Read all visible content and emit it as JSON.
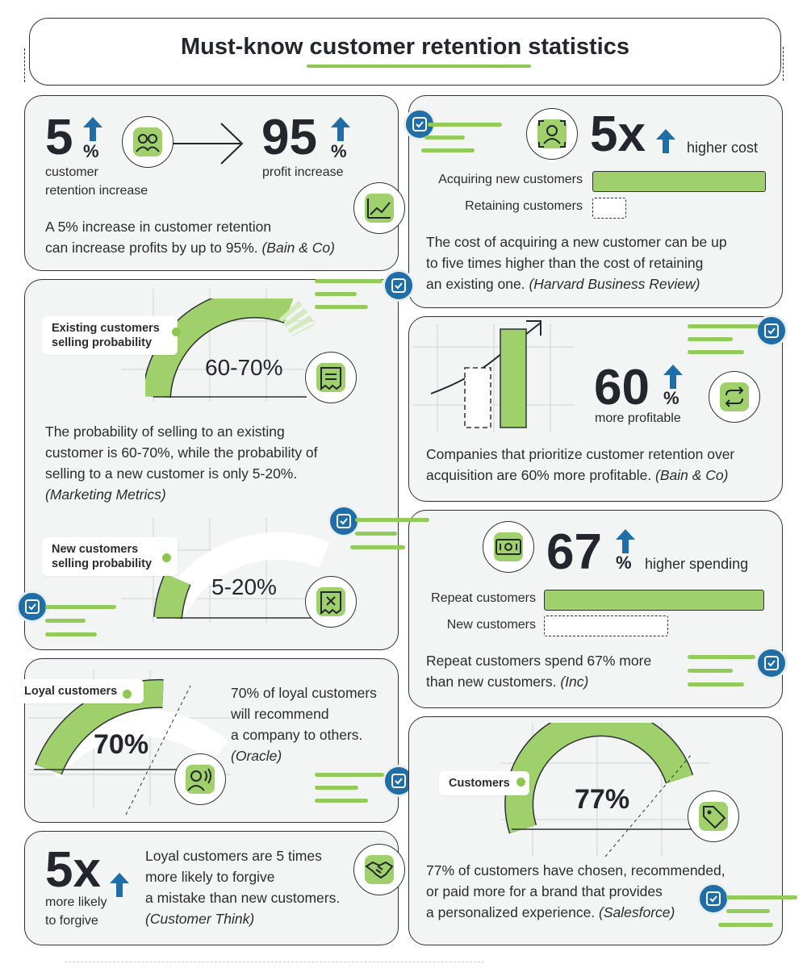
{
  "title": {
    "part1": "Must-know ",
    "part2": "customer retention",
    "part3": " statistics"
  },
  "colors": {
    "green": "#8dc750",
    "blue": "#1f6ea7",
    "dark": "#23272d",
    "card": "#f3f4f4"
  },
  "card1": {
    "stat_a": "5",
    "stat_a_unit": "%",
    "stat_a_label_1": "customer",
    "stat_a_label_2": "retention increase",
    "stat_b": "95",
    "stat_b_unit": "%",
    "stat_b_label": "profit increase",
    "text_1": "A 5% increase in customer retention",
    "text_2": "can increase profits by up to 95%. ",
    "source": "(Bain & Co)",
    "icons": [
      "people-icon",
      "arrow-right-icon",
      "trend-chart-icon",
      "arrow-up-icon"
    ]
  },
  "card2": {
    "stat": "5x",
    "stat_label": "higher cost",
    "bar_1_label": "Acquiring new customers",
    "bar_1_value": 5,
    "bar_2_label": "Retaining customers",
    "bar_2_value": 1,
    "text_1": "The cost of acquiring a new customer can be up",
    "text_2": "to five times higher than the cost of retaining",
    "text_3": "an existing one. ",
    "source": "(Harvard Business Review)"
  },
  "card3": {
    "label_1": "Existing customers",
    "label_2": "selling probability",
    "gauge_value": "60-70%",
    "text_1": "The probability of selling to an existing",
    "text_2": "customer is 60-70%, while the probability of",
    "text_3": "selling to a new customer is only 5-20%.",
    "source": "(Marketing Metrics)",
    "label_b_1": "New customers",
    "label_b_2": "selling probability",
    "gauge_b_value": "5-20%"
  },
  "card4": {
    "stat": "60",
    "stat_unit": "%",
    "stat_label": "more profitable",
    "text_1": "Companies that prioritize customer retention over",
    "text_2": "acquisition are 60% more profitable. ",
    "source": "(Bain & Co)"
  },
  "card5": {
    "stat": "67",
    "stat_unit": "%",
    "stat_label": "higher spending",
    "bar_1_label": "Repeat customers",
    "bar_2_label": "New customers",
    "text_1": "Repeat customers spend 67% more",
    "text_2": "than new customers. ",
    "source": "(Inc)"
  },
  "card6": {
    "pill": "Loyal customers",
    "gauge_value": "70%",
    "text_1": "70% of loyal customers",
    "text_2": "will recommend",
    "text_3": "a company to others.",
    "source": "(Oracle)"
  },
  "card7": {
    "pill": "Customers",
    "gauge_value": "77%",
    "text_1": "77% of customers have chosen, recommended,",
    "text_2": "or paid more for a brand that provides",
    "text_3": "a personalized experience. ",
    "source": "(Salesforce)"
  },
  "card8": {
    "stat": "5x",
    "stat_label_1": "more likely",
    "stat_label_2": "to forgive",
    "text_1": "Loyal customers are 5 times",
    "text_2": "more likely to forgive",
    "text_3": "a mistake than new customers.",
    "source": "(Customer Think)"
  }
}
